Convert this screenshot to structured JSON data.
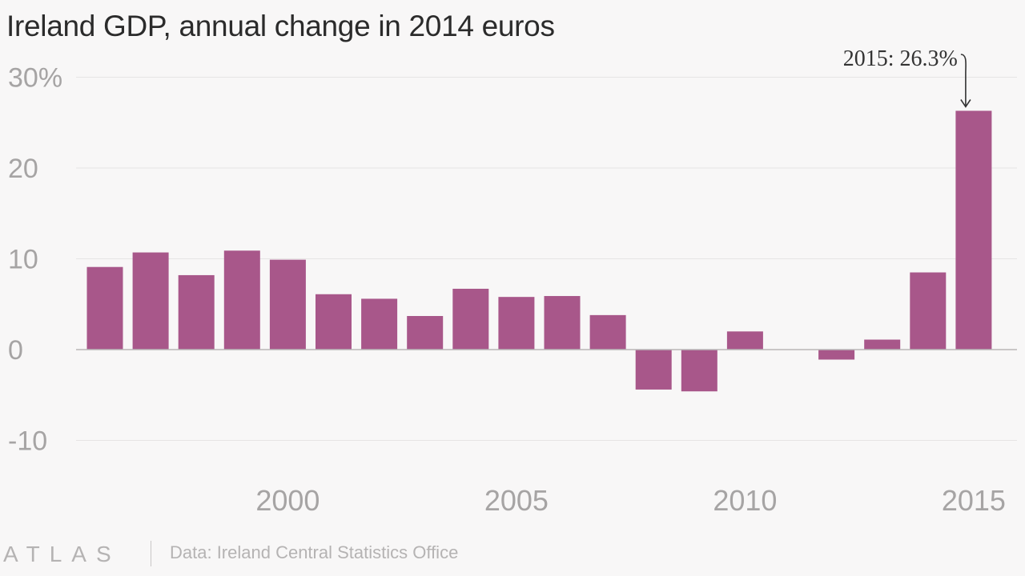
{
  "chart_data": {
    "type": "bar",
    "title": "Ireland GDP, annual change in 2014 euros",
    "x": [
      1996,
      1997,
      1998,
      1999,
      2000,
      2001,
      2002,
      2003,
      2004,
      2005,
      2006,
      2007,
      2008,
      2009,
      2010,
      2011,
      2012,
      2013,
      2014,
      2015
    ],
    "values": [
      9.1,
      10.7,
      8.2,
      10.9,
      9.9,
      6.1,
      5.6,
      3.7,
      6.7,
      5.8,
      5.9,
      3.8,
      -4.4,
      -4.6,
      2.0,
      0.0,
      -1.1,
      1.1,
      8.5,
      26.3
    ],
    "ylim": [
      -12,
      31
    ],
    "yticks": [
      -10,
      0,
      10,
      20,
      30
    ],
    "ytick_labels": [
      "-10",
      "0",
      "10",
      "20",
      "30%"
    ],
    "xticks": [
      2000,
      2005,
      2010,
      2015
    ],
    "xtick_labels": [
      "2000",
      "2005",
      "2010",
      "2015"
    ],
    "xlabel": "",
    "ylabel": "",
    "bar_color": "#a8578a",
    "grid": true,
    "annotation": {
      "x": 2015,
      "text": "2015: 26.3%"
    }
  },
  "footer": {
    "logo": "ATLAS",
    "source": "Data: Ireland Central Statistics Office"
  }
}
